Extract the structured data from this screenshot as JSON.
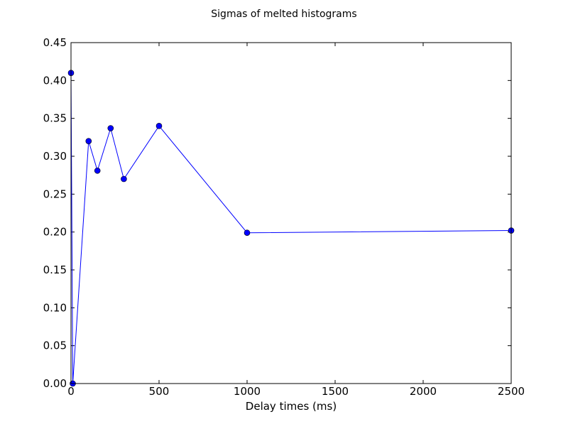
{
  "chart_data": {
    "type": "line",
    "title": "Sigmas of melted histograms",
    "xlabel": "Delay times (ms)",
    "ylabel": "",
    "xlim": [
      0,
      2500
    ],
    "ylim": [
      0.0,
      0.45
    ],
    "x_ticks": [
      0,
      500,
      1000,
      1500,
      2000,
      2500
    ],
    "x_tick_labels": [
      "0",
      "500",
      "1000",
      "1500",
      "2000",
      "2500"
    ],
    "y_ticks": [
      0.0,
      0.05,
      0.1,
      0.15,
      0.2,
      0.25,
      0.3,
      0.35,
      0.4,
      0.45
    ],
    "y_tick_labels": [
      "0.00",
      "0.05",
      "0.10",
      "0.15",
      "0.20",
      "0.25",
      "0.30",
      "0.35",
      "0.40",
      "0.45"
    ],
    "grid": false,
    "legend": "none",
    "series": [
      {
        "color": "#0000ff",
        "marker": "circle",
        "x": [
          0,
          10,
          100,
          150,
          225,
          300,
          500,
          1000,
          2500
        ],
        "y": [
          0.41,
          0.0,
          0.32,
          0.281,
          0.337,
          0.27,
          0.34,
          0.199,
          0.202
        ]
      }
    ]
  }
}
